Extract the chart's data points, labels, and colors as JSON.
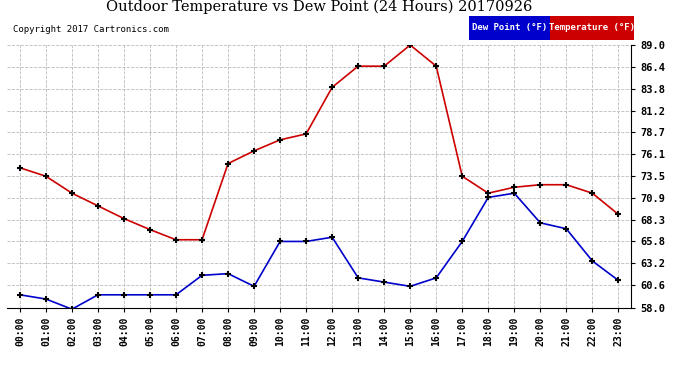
{
  "title": "Outdoor Temperature vs Dew Point (24 Hours) 20170926",
  "copyright": "Copyright 2017 Cartronics.com",
  "hours": [
    "00:00",
    "01:00",
    "02:00",
    "03:00",
    "04:00",
    "05:00",
    "06:00",
    "07:00",
    "08:00",
    "09:00",
    "10:00",
    "11:00",
    "12:00",
    "13:00",
    "14:00",
    "15:00",
    "16:00",
    "17:00",
    "18:00",
    "19:00",
    "20:00",
    "21:00",
    "22:00",
    "23:00"
  ],
  "temperature": [
    74.5,
    73.5,
    71.5,
    70.0,
    68.5,
    67.2,
    66.0,
    66.0,
    75.0,
    76.5,
    77.8,
    78.5,
    84.0,
    86.5,
    86.5,
    89.0,
    86.5,
    73.5,
    71.5,
    72.2,
    72.5,
    72.5,
    71.5,
    69.0
  ],
  "dew_point": [
    59.5,
    59.0,
    57.8,
    59.5,
    59.5,
    59.5,
    59.5,
    61.8,
    62.0,
    60.5,
    65.8,
    65.8,
    66.3,
    61.5,
    61.0,
    60.5,
    61.5,
    65.8,
    71.0,
    71.5,
    68.0,
    67.3,
    63.5,
    61.2
  ],
  "temp_color": "#cc0000",
  "dew_color": "#0000cc",
  "bg_color": "#ffffff",
  "grid_color": "#bbbbbb",
  "ylim": [
    58.0,
    89.0
  ],
  "yticks": [
    58.0,
    60.6,
    63.2,
    65.8,
    68.3,
    70.9,
    73.5,
    76.1,
    78.7,
    81.2,
    83.8,
    86.4,
    89.0
  ],
  "legend_dew_bg": "#0000cc",
  "legend_temp_bg": "#cc0000",
  "legend_dew_label": "Dew Point (°F)",
  "legend_temp_label": "Temperature (°F)"
}
